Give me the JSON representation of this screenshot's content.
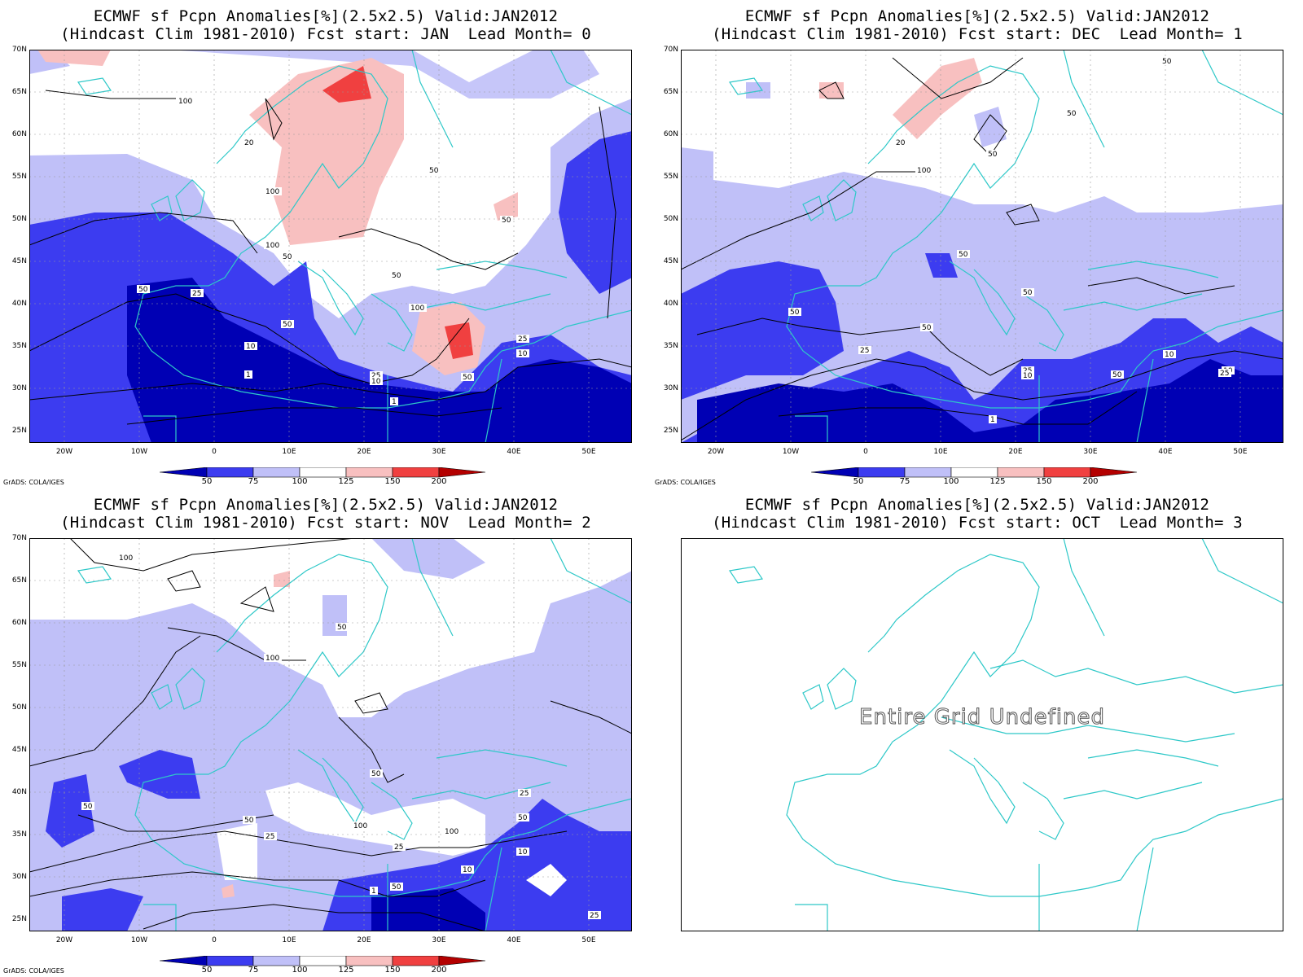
{
  "colors": {
    "c_lt50": "#0000b4",
    "c_50_75": "#3c3cf0",
    "c_75_100": "#c0c0f8",
    "c_100_125": "#ffffff",
    "c_125_150": "#f8c0c0",
    "c_150_200": "#f04040",
    "c_gt200": "#b40000",
    "coast": "#2ec8c8",
    "contour": "#000000"
  },
  "axis": {
    "lat_labels": [
      "70N",
      "65N",
      "60N",
      "55N",
      "50N",
      "45N",
      "40N",
      "35N",
      "30N",
      "25N"
    ],
    "lon_labels": [
      "20W",
      "10W",
      "0",
      "10E",
      "20E",
      "30E",
      "40E",
      "50E"
    ]
  },
  "colorbar": {
    "labels": [
      "50",
      "75",
      "100",
      "125",
      "150",
      "200"
    ]
  },
  "footer": "GrADS: COLA/IGES",
  "panels": [
    {
      "title1": "ECMWF sf Pcpn Anomalies[%](2.5x2.5) Valid:JAN2012",
      "title2": "(Hindcast Clim 1981-2010) Fcst start: JAN  Lead Month= 0",
      "undefined_text": "",
      "contour_labels": [
        "100",
        "20",
        "50",
        "100",
        "100",
        "50",
        "50",
        "100",
        "25",
        "50",
        "50",
        "10",
        "1",
        "25",
        "10",
        "25",
        "10",
        "50",
        "1",
        "50"
      ]
    },
    {
      "title1": "ECMWF sf Pcpn Anomalies[%](2.5x2.5) Valid:JAN2012",
      "title2": "(Hindcast Clim 1981-2010) Fcst start: DEC  Lead Month= 1",
      "undefined_text": "",
      "contour_labels": [
        "50",
        "50",
        "20",
        "50",
        "100",
        "50",
        "50",
        "50",
        "50",
        "25",
        "25",
        "10",
        "10",
        "50",
        "10",
        "25",
        "1"
      ]
    },
    {
      "title1": "ECMWF sf Pcpn Anomalies[%](2.5x2.5) Valid:JAN2012",
      "title2": "(Hindcast Clim 1981-2010) Fcst start: NOV  Lead Month= 2",
      "undefined_text": "",
      "contour_labels": [
        "100",
        "50",
        "100",
        "50",
        "50",
        "50",
        "25",
        "100",
        "100",
        "50",
        "10",
        "25",
        "50",
        "10",
        "1",
        "25",
        "25"
      ]
    },
    {
      "title1": "ECMWF sf Pcpn Anomalies[%](2.5x2.5) Valid:JAN2012",
      "title2": "(Hindcast Clim 1981-2010) Fcst start: OCT  Lead Month= 3",
      "undefined_text": "Entire Grid Undefined",
      "contour_labels": []
    }
  ]
}
